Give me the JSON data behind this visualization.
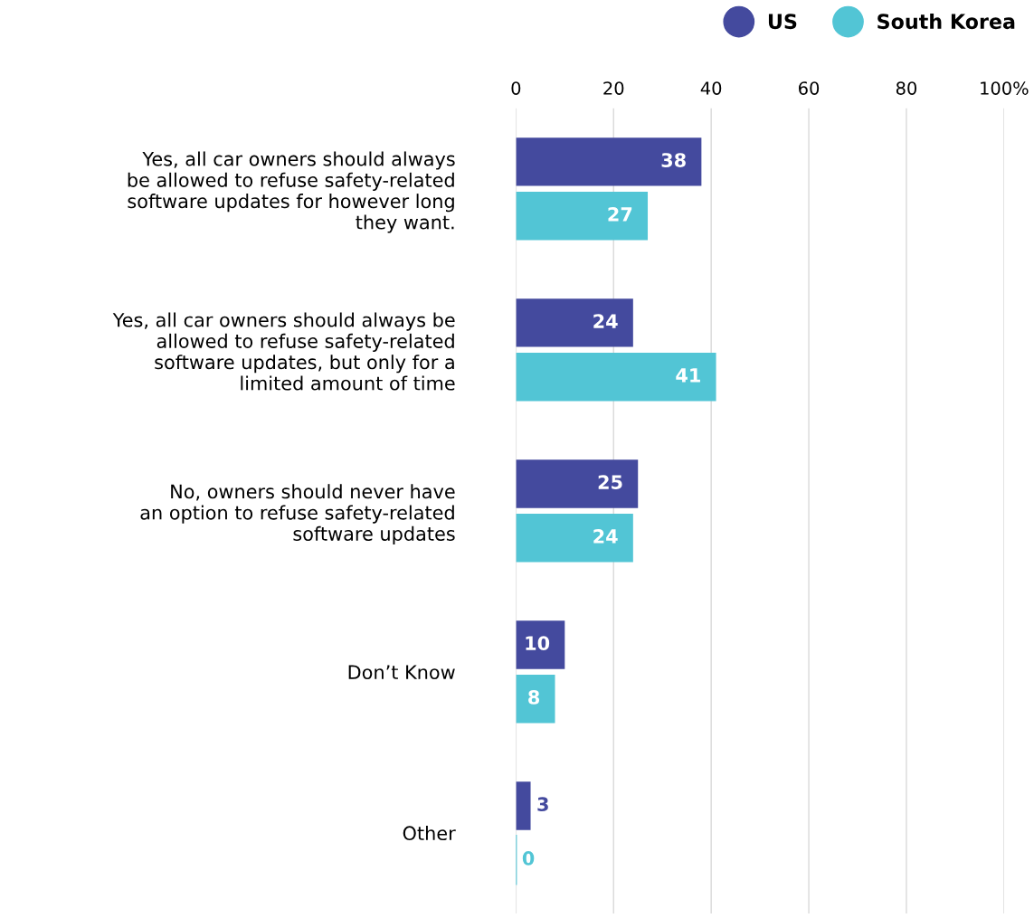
{
  "chart_data": {
    "type": "bar",
    "orientation": "horizontal",
    "categories": [
      "Yes, all car owners should always\nbe allowed to refuse safety-related\nsoftware updates for however long\nthey want.",
      "Yes, all car owners should always be\nallowed to refuse safety-related\nsoftware updates, but only for a\nlimited amount of time",
      "No, owners should never have\nan option to refuse safety-related\nsoftware updates",
      "Don’t Know",
      "Other"
    ],
    "series": [
      {
        "name": "US",
        "color": "#444a9e",
        "values": [
          38,
          24,
          25,
          10,
          3
        ]
      },
      {
        "name": "South Korea",
        "color": "#52c5d5",
        "values": [
          27,
          41,
          24,
          8,
          0
        ]
      }
    ],
    "xlim": [
      0,
      100
    ],
    "xticks": [
      0,
      20,
      40,
      60,
      80,
      {
        "value": 100,
        "label": "100%"
      }
    ],
    "grid": "x",
    "legend": "top right",
    "data_labels": true
  }
}
